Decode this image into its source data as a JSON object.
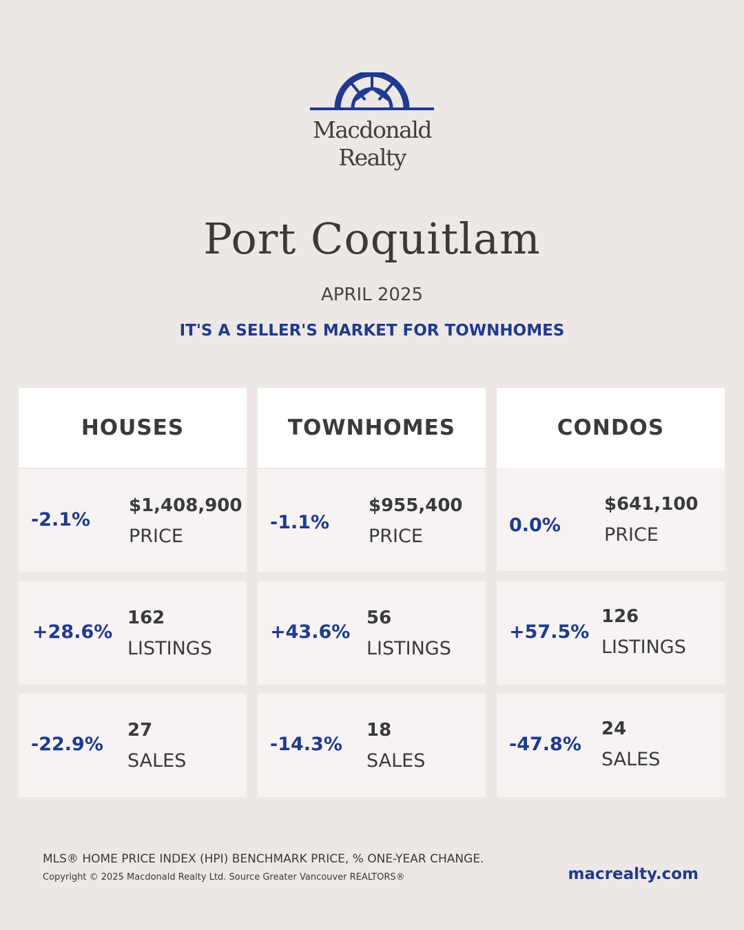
{
  "brand": {
    "name_line1": "Macdonald",
    "name_line2": "Realty",
    "accent": "#1f3a8f"
  },
  "header": {
    "title": "Port Coquitlam",
    "period": "APRIL 2025",
    "tagline": "IT'S A SELLER'S MARKET FOR TOWNHOMES"
  },
  "columns": [
    {
      "heading": "HOUSES",
      "rows": [
        {
          "change": "-2.1%",
          "value": "$1,408,900",
          "label": "PRICE"
        },
        {
          "change": "+28.6%",
          "value": "162",
          "label": "LISTINGS"
        },
        {
          "change": "-22.9%",
          "value": "27",
          "label": "SALES"
        }
      ]
    },
    {
      "heading": "TOWNHOMES",
      "rows": [
        {
          "change": "-1.1%",
          "value": "$955,400",
          "label": "PRICE"
        },
        {
          "change": "+43.6%",
          "value": "56",
          "label": "LISTINGS"
        },
        {
          "change": "-14.3%",
          "value": "18",
          "label": "SALES"
        }
      ]
    },
    {
      "heading": "CONDOS",
      "rows": [
        {
          "change": "0.0%",
          "value": "$641,100",
          "label": "PRICE"
        },
        {
          "change": "+57.5%",
          "value": "126",
          "label": "LISTINGS"
        },
        {
          "change": "-47.8%",
          "value": "24",
          "label": "SALES"
        }
      ]
    }
  ],
  "footer": {
    "note": "MLS® HOME PRICE INDEX (HPI) BENCHMARK PRICE, % ONE-YEAR CHANGE.",
    "copyright": "Copyright © 2025 Macdonald Realty Ltd. Source Greater Vancouver REALTORS®",
    "website": "macrealty.com"
  }
}
